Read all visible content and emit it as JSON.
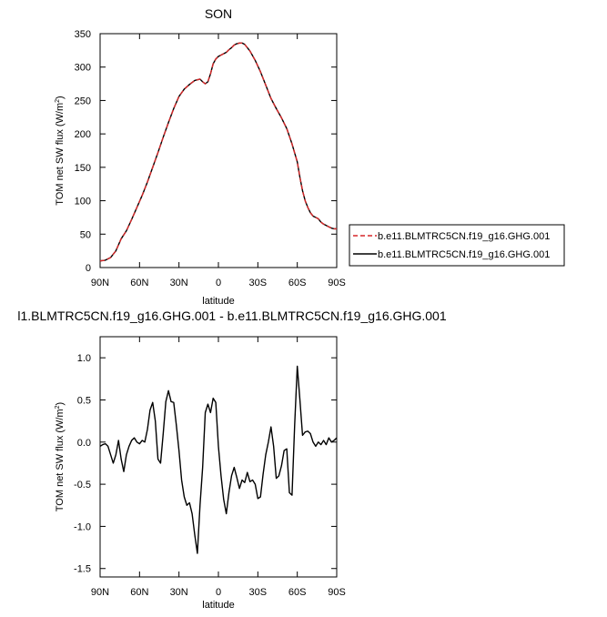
{
  "chart_data": [
    {
      "type": "line",
      "title": "SON",
      "xlabel": "latitude",
      "ylabel": "TOM net SW flux (W/m²)",
      "ylabel_main": "TOM net SW flux (W/m",
      "ylabel_sup": "2",
      "ylabel_close": ")",
      "xlim": [
        90,
        -90
      ],
      "ylim": [
        0,
        350
      ],
      "xtick_values": [
        90,
        60,
        30,
        0,
        -30,
        -60,
        -90
      ],
      "xtick_labels": [
        "90N",
        "60N",
        "30N",
        "0",
        "30S",
        "60S",
        "90S"
      ],
      "ytick_values": [
        0,
        50,
        100,
        150,
        200,
        250,
        300,
        350
      ],
      "ytick_labels": [
        "0",
        "50",
        "100",
        "150",
        "200",
        "250",
        "300",
        "350"
      ],
      "legend_position": "right",
      "series": [
        {
          "name": "b.e11.BLMTRC5CN.f19_g16.GHG.001",
          "color": "#d62728",
          "dash": "dashed",
          "x": [
            90,
            86,
            82,
            78,
            74,
            70,
            66,
            62,
            58,
            54,
            50,
            46,
            42,
            38,
            34,
            30,
            26,
            22,
            18,
            14,
            12,
            10,
            8,
            6,
            4,
            2,
            0,
            -2,
            -4,
            -6,
            -8,
            -10,
            -12,
            -14,
            -16,
            -18,
            -20,
            -24,
            -28,
            -32,
            -36,
            -40,
            -44,
            -48,
            -52,
            -56,
            -60,
            -62,
            -64,
            -66,
            -68,
            -70,
            -72,
            -74,
            -76,
            -78,
            -80,
            -82,
            -84,
            -86,
            -88,
            -90
          ],
          "y": [
            10,
            11,
            15,
            25,
            43,
            55,
            72,
            90,
            108,
            128,
            150,
            172,
            195,
            217,
            238,
            256,
            267,
            274,
            280,
            282,
            278,
            275,
            278,
            290,
            305,
            312,
            316,
            318,
            320,
            322,
            326,
            329,
            333,
            335,
            336,
            336,
            334,
            324,
            310,
            293,
            273,
            253,
            238,
            224,
            208,
            185,
            158,
            135,
            115,
            100,
            90,
            82,
            77,
            75,
            73,
            68,
            65,
            63,
            61,
            59,
            58,
            58
          ]
        },
        {
          "name": "b.e11.BLMTRC5CN.f19_g16.GHG.001",
          "color": "#000000",
          "dash": "solid",
          "x": [
            90,
            86,
            82,
            78,
            74,
            70,
            66,
            62,
            58,
            54,
            50,
            46,
            42,
            38,
            34,
            30,
            26,
            22,
            18,
            14,
            12,
            10,
            8,
            6,
            4,
            2,
            0,
            -2,
            -4,
            -6,
            -8,
            -10,
            -12,
            -14,
            -16,
            -18,
            -20,
            -24,
            -28,
            -32,
            -36,
            -40,
            -44,
            -48,
            -52,
            -56,
            -60,
            -62,
            -64,
            -66,
            -68,
            -70,
            -72,
            -74,
            -76,
            -78,
            -80,
            -82,
            -84,
            -86,
            -88,
            -90
          ],
          "y": [
            10,
            11,
            15,
            25,
            43,
            55,
            72,
            90,
            108,
            128,
            150,
            172,
            195,
            217,
            238,
            256,
            267,
            274,
            280,
            282,
            278,
            275,
            278,
            290,
            305,
            312,
            316,
            318,
            320,
            322,
            326,
            329,
            333,
            335,
            336,
            336,
            334,
            324,
            310,
            293,
            273,
            253,
            238,
            224,
            208,
            185,
            158,
            135,
            115,
            100,
            90,
            82,
            77,
            75,
            73,
            68,
            65,
            63,
            61,
            59,
            58,
            58
          ]
        }
      ]
    },
    {
      "type": "line",
      "title": "l1.BLMTRC5CN.f19_g16.GHG.001 - b.e11.BLMTRC5CN.f19_g16.GHG.001",
      "xlabel": "latitude",
      "ylabel": "TOM net SW flux (W/m²)",
      "ylabel_main": "TOM net SW flux (W/m",
      "ylabel_sup": "2",
      "ylabel_close": ")",
      "xlim": [
        90,
        -90
      ],
      "ylim": [
        -1.6,
        1.25
      ],
      "xtick_values": [
        90,
        60,
        30,
        0,
        -30,
        -60,
        -90
      ],
      "xtick_labels": [
        "90N",
        "60N",
        "30N",
        "0",
        "30S",
        "60S",
        "90S"
      ],
      "ytick_values": [
        -1.5,
        -1.0,
        -0.5,
        0.0,
        0.5,
        1.0
      ],
      "ytick_labels": [
        "-1.5",
        "-1.0",
        "-0.5",
        "0.0",
        "0.5",
        "1.0"
      ],
      "series": [
        {
          "color": "#000000",
          "x": [
            90,
            88,
            86,
            84,
            82,
            80,
            78,
            76,
            74,
            72,
            70,
            68,
            66,
            64,
            62,
            60,
            58,
            56,
            54,
            52,
            50,
            48,
            46,
            44,
            42,
            40,
            38,
            36,
            34,
            32,
            30,
            28,
            26,
            24,
            22,
            20,
            18,
            16,
            14,
            12,
            10,
            8,
            6,
            4,
            2,
            0,
            -2,
            -4,
            -6,
            -8,
            -10,
            -12,
            -14,
            -16,
            -18,
            -20,
            -22,
            -24,
            -26,
            -28,
            -30,
            -32,
            -34,
            -36,
            -38,
            -40,
            -42,
            -44,
            -46,
            -48,
            -50,
            -52,
            -54,
            -56,
            -58,
            -60,
            -62,
            -64,
            -66,
            -68,
            -70,
            -72,
            -74,
            -76,
            -78,
            -80,
            -82,
            -84,
            -86,
            -88,
            -90
          ],
          "y": [
            -0.05,
            -0.03,
            -0.02,
            -0.05,
            -0.15,
            -0.25,
            -0.15,
            0.02,
            -0.2,
            -0.35,
            -0.15,
            -0.05,
            0.02,
            0.05,
            0.0,
            -0.02,
            0.02,
            0.0,
            0.15,
            0.38,
            0.47,
            0.25,
            -0.2,
            -0.25,
            0.1,
            0.48,
            0.61,
            0.48,
            0.47,
            0.2,
            -0.1,
            -0.45,
            -0.65,
            -0.75,
            -0.72,
            -0.85,
            -1.1,
            -1.32,
            -0.75,
            -0.3,
            0.35,
            0.45,
            0.35,
            0.52,
            0.47,
            -0.05,
            -0.4,
            -0.68,
            -0.85,
            -0.6,
            -0.4,
            -0.3,
            -0.42,
            -0.55,
            -0.45,
            -0.48,
            -0.36,
            -0.47,
            -0.45,
            -0.5,
            -0.67,
            -0.65,
            -0.38,
            -0.15,
            0.0,
            0.18,
            -0.05,
            -0.43,
            -0.4,
            -0.28,
            -0.1,
            -0.08,
            -0.6,
            -0.63,
            0.2,
            0.9,
            0.5,
            0.08,
            0.12,
            0.13,
            0.1,
            0.0,
            -0.05,
            0.0,
            -0.03,
            0.02,
            -0.03,
            0.05,
            0.0,
            0.02,
            0.05
          ]
        }
      ]
    }
  ]
}
